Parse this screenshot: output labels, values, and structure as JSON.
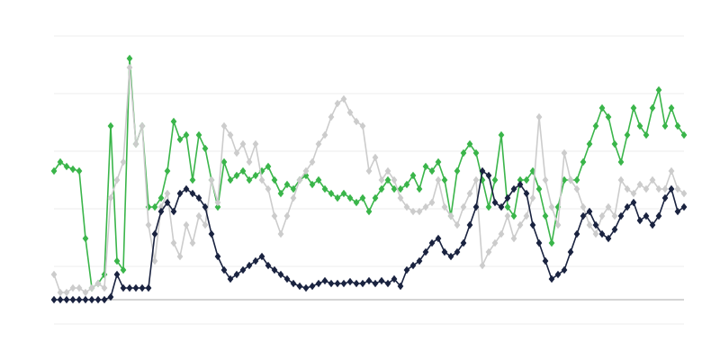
{
  "chart_data": {
    "type": "line",
    "title": "",
    "xlabel": "",
    "ylabel": "",
    "grid": true,
    "legend": "none",
    "ylim": [
      -27,
      293
    ],
    "marker": "diamond",
    "series": [
      {
        "color": "#3ab54a",
        "values": [
          143,
          153,
          148,
          145,
          143,
          68,
          13,
          18,
          28,
          193,
          43,
          33,
          268,
          173,
          193,
          103,
          103,
          113,
          143,
          198,
          178,
          183,
          133,
          183,
          168,
          133,
          103,
          153,
          133,
          138,
          143,
          133,
          138,
          143,
          148,
          133,
          118,
          128,
          123,
          133,
          138,
          128,
          133,
          123,
          118,
          113,
          118,
          113,
          108,
          113,
          98,
          113,
          123,
          133,
          123,
          123,
          128,
          138,
          123,
          148,
          143,
          153,
          133,
          93,
          143,
          163,
          173,
          163,
          133,
          103,
          133,
          183,
          103,
          93,
          133,
          133,
          143,
          123,
          93,
          63,
          103,
          133,
          133,
          133,
          153,
          173,
          193,
          213,
          203,
          173,
          153,
          183,
          213,
          193,
          183,
          213,
          233,
          193,
          213,
          193,
          183
        ]
      },
      {
        "color": "#cccccc",
        "values": [
          28,
          8,
          8,
          13,
          13,
          8,
          13,
          18,
          13,
          113,
          133,
          153,
          258,
          173,
          193,
          83,
          43,
          103,
          118,
          63,
          48,
          83,
          63,
          93,
          83,
          133,
          108,
          193,
          183,
          163,
          173,
          153,
          173,
          133,
          123,
          93,
          73,
          93,
          113,
          133,
          143,
          153,
          173,
          183,
          203,
          218,
          223,
          208,
          198,
          193,
          143,
          158,
          133,
          143,
          133,
          113,
          103,
          98,
          98,
          103,
          108,
          133,
          103,
          93,
          83,
          103,
          118,
          133,
          38,
          53,
          63,
          73,
          93,
          68,
          83,
          93,
          113,
          203,
          133,
          103,
          83,
          163,
          133,
          123,
          103,
          83,
          73,
          93,
          103,
          93,
          133,
          123,
          118,
          128,
          123,
          133,
          123,
          123,
          143,
          123,
          118
        ]
      },
      {
        "color": "#1a2340",
        "values": [
          0,
          0,
          0,
          0,
          0,
          0,
          0,
          0,
          0,
          3,
          28,
          13,
          13,
          13,
          13,
          13,
          73,
          98,
          108,
          98,
          118,
          123,
          118,
          113,
          103,
          73,
          48,
          33,
          23,
          28,
          33,
          38,
          43,
          48,
          38,
          33,
          28,
          23,
          18,
          15,
          13,
          15,
          18,
          21,
          18,
          18,
          18,
          20,
          18,
          18,
          21,
          18,
          21,
          18,
          23,
          15,
          33,
          38,
          43,
          53,
          63,
          68,
          53,
          48,
          53,
          63,
          83,
          103,
          143,
          138,
          108,
          103,
          113,
          123,
          128,
          118,
          83,
          63,
          43,
          23,
          28,
          33,
          53,
          73,
          93,
          98,
          83,
          73,
          68,
          78,
          93,
          103,
          108,
          88,
          93,
          83,
          93,
          113,
          123,
          98,
          103
        ]
      }
    ]
  }
}
